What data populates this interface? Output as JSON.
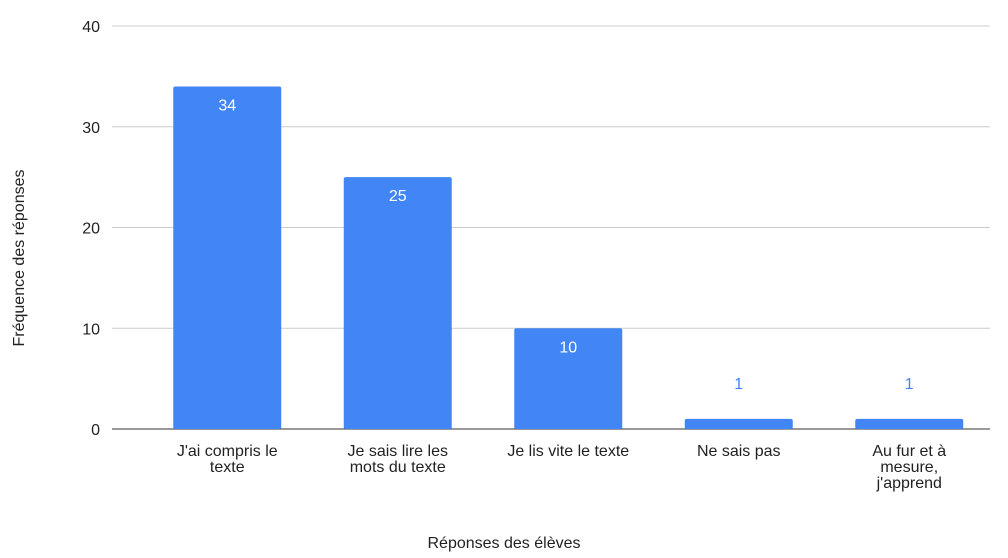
{
  "chart_data": {
    "type": "bar",
    "x_label": "Réponses des élèves",
    "y_label": "Fréquence des réponses",
    "categories": [
      "J'ai compris le texte",
      "Je sais lire les mots du texte",
      "Je lis vite le texte",
      "Ne sais pas",
      "Au fur et à mesure, j'apprend"
    ],
    "values": [
      34,
      25,
      10,
      1,
      1
    ],
    "color": "#4285f4",
    "ylim": [
      0,
      40
    ],
    "yticks": [
      0,
      10,
      20,
      30,
      40
    ],
    "grid": true
  }
}
